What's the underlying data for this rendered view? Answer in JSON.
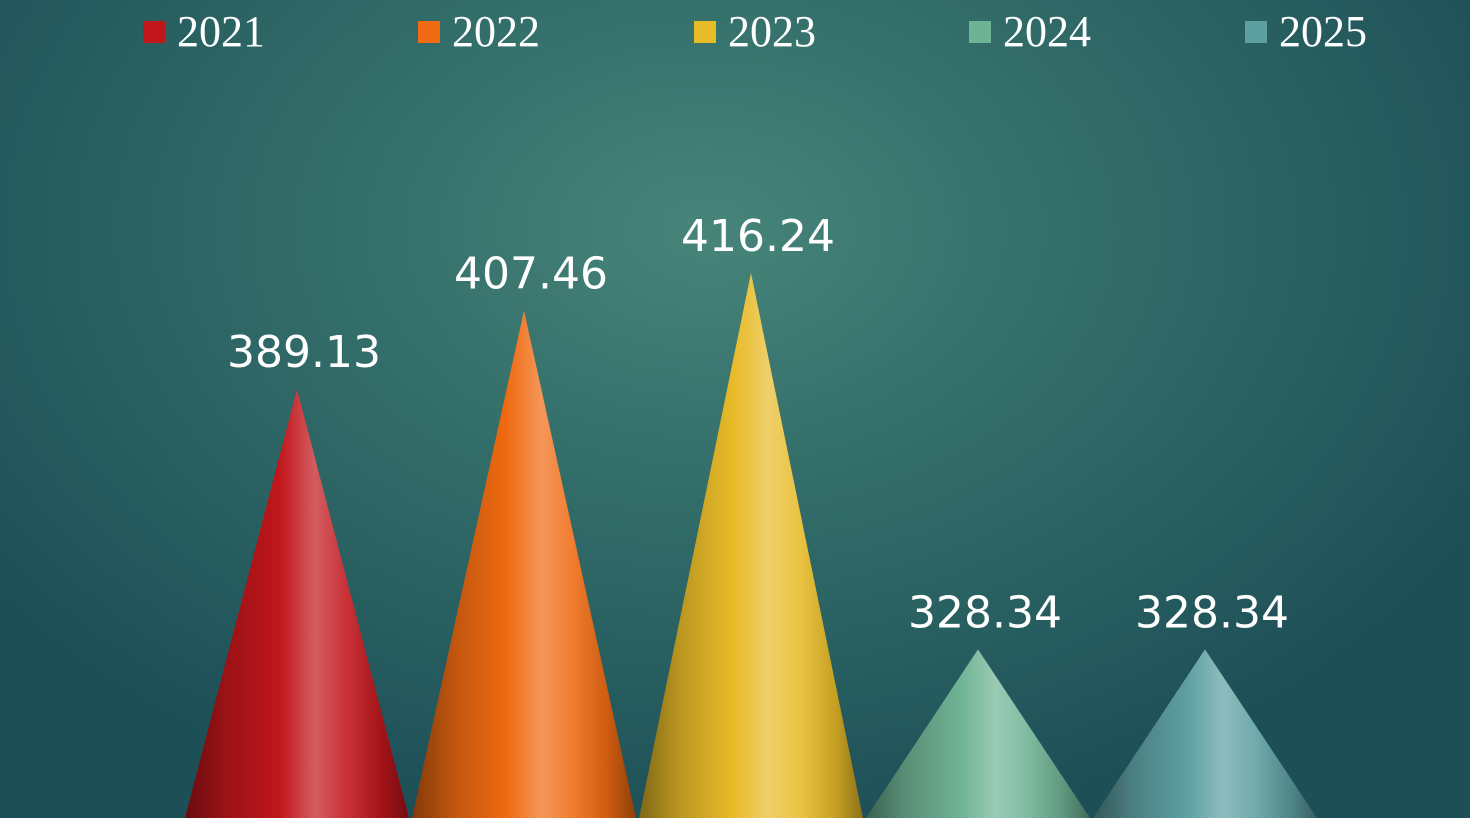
{
  "chart_data": {
    "type": "bar",
    "bar_shape": "cone",
    "categories": [
      "2021",
      "2022",
      "2023",
      "2024",
      "2025"
    ],
    "values": [
      389.13,
      407.46,
      416.24,
      328.34,
      328.34
    ],
    "value_labels": [
      "389.13",
      "407.46",
      "416.24",
      "328.34",
      "328.34"
    ],
    "legend": {
      "placement": "top",
      "entries": [
        "2021",
        "2022",
        "2023",
        "2024",
        "2025"
      ]
    },
    "colors": [
      "#c0161c",
      "#ef6a12",
      "#e8bb28",
      "#6fb395",
      "#5e9fa2"
    ],
    "grid": false,
    "background": "#2f6b69"
  }
}
